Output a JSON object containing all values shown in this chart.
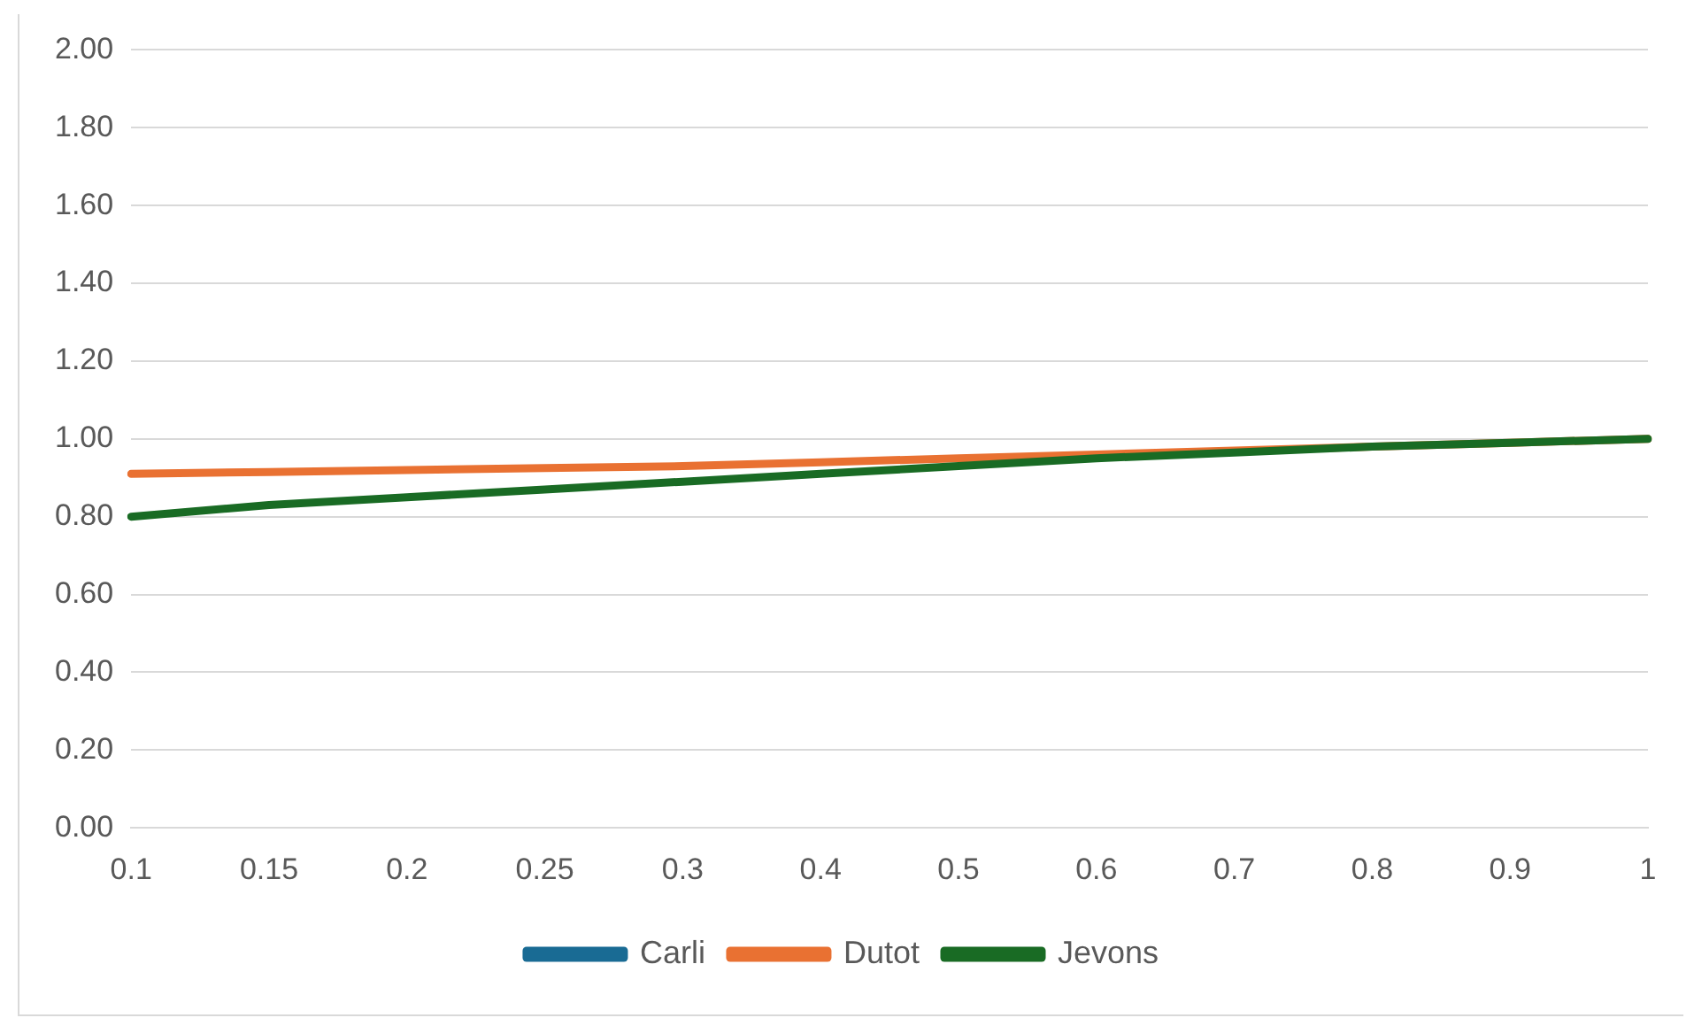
{
  "chart_data": {
    "type": "line",
    "categories": [
      "0.1",
      "0.15",
      "0.2",
      "0.25",
      "0.3",
      "0.4",
      "0.5",
      "0.6",
      "0.7",
      "0.8",
      "0.9",
      "1"
    ],
    "series": [
      {
        "name": "Carli",
        "color": "#196b94",
        "values": [
          null,
          null,
          null,
          null,
          null,
          null,
          null,
          null,
          null,
          null,
          null,
          null
        ]
      },
      {
        "name": "Dutot",
        "color": "#e97132",
        "values": [
          0.91,
          0.915,
          0.92,
          0.925,
          0.93,
          0.94,
          0.95,
          0.96,
          0.97,
          0.98,
          0.99,
          1.0
        ]
      },
      {
        "name": "Jevons",
        "color": "#196b24",
        "values": [
          0.8,
          0.83,
          0.85,
          0.87,
          0.89,
          0.91,
          0.93,
          0.95,
          0.965,
          0.98,
          0.99,
          1.0
        ]
      }
    ],
    "ylim": [
      0,
      2
    ],
    "yticks": [
      {
        "value": 0,
        "label": "0.00"
      },
      {
        "value": 0.2,
        "label": "0.20"
      },
      {
        "value": 0.4,
        "label": "0.40"
      },
      {
        "value": 0.6,
        "label": "0.60"
      },
      {
        "value": 0.8,
        "label": "0.80"
      },
      {
        "value": 1,
        "label": "1.00"
      },
      {
        "value": 1.2,
        "label": "1.20"
      },
      {
        "value": 1.4,
        "label": "1.40"
      },
      {
        "value": 1.6,
        "label": "1.60"
      },
      {
        "value": 1.8,
        "label": "1.80"
      },
      {
        "value": 2,
        "label": "2.00"
      }
    ],
    "grid": "y",
    "legend": "bottom",
    "marker": "none",
    "line_style": "solid"
  }
}
